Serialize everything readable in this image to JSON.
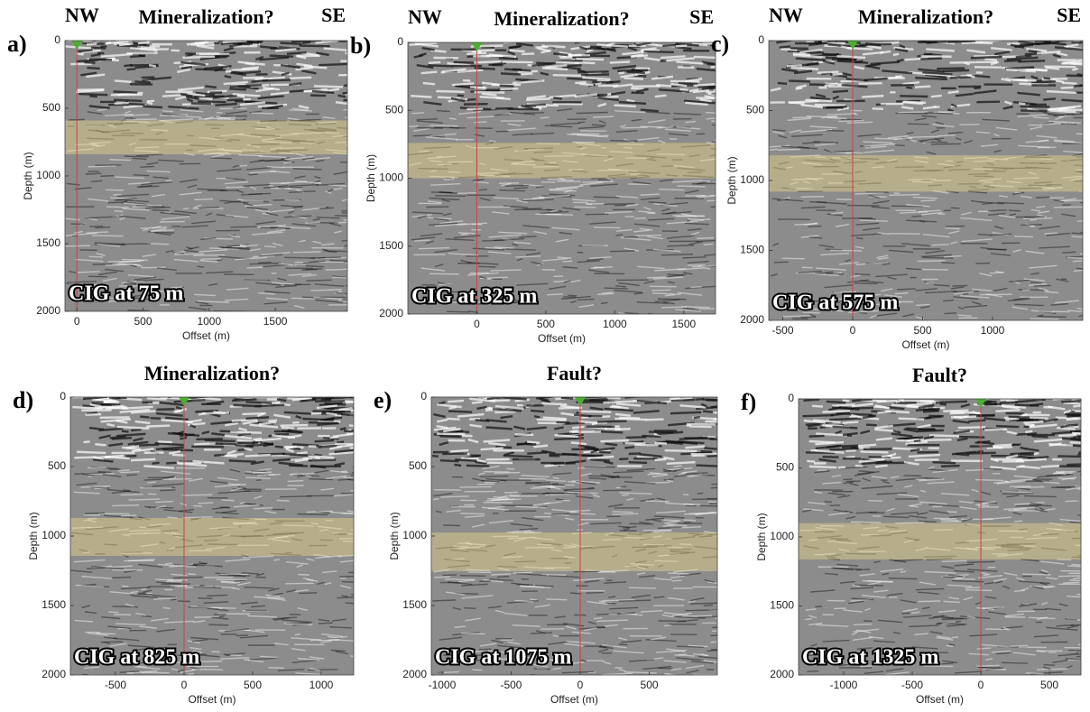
{
  "panels": [
    {
      "label": "a)",
      "left_label": "NW",
      "title": "Mineralization?",
      "right_label": "SE",
      "cig": "CIG at 75 m",
      "xlabel": "Offset (m)",
      "ylabel": "Depth (m)",
      "xlim": [
        -90,
        2045
      ],
      "ylim": [
        0,
        2000
      ],
      "xticks": [
        0,
        500,
        1000,
        1500
      ],
      "yticks": [
        0,
        500,
        1000,
        1500,
        2000
      ],
      "band": [
        590,
        840
      ],
      "marker": 0
    },
    {
      "label": "b)",
      "left_label": "NW",
      "title": "Mineralization?",
      "right_label": "SE",
      "cig": "CIG at 325 m",
      "xlabel": "Offset (m)",
      "ylabel": "Depth (m)",
      "xlim": [
        -500,
        1730
      ],
      "ylim": [
        0,
        2000
      ],
      "xticks": [
        0,
        500,
        1000,
        1500
      ],
      "yticks": [
        0,
        500,
        1000,
        1500,
        2000
      ],
      "band": [
        740,
        1000
      ],
      "marker": 0
    },
    {
      "label": "c)",
      "left_label": "NW",
      "title": "Mineralization?",
      "right_label": "SE",
      "cig": "CIG at 575 m",
      "xlabel": "Offset (m)",
      "ylabel": "Depth (m)",
      "xlim": [
        -600,
        1645
      ],
      "ylim": [
        0,
        2000
      ],
      "xticks": [
        -500,
        0,
        500,
        1000
      ],
      "yticks": [
        0,
        500,
        1000,
        1500,
        2000
      ],
      "band": [
        820,
        1080
      ],
      "marker": 0
    },
    {
      "label": "d)",
      "title": "Mineralization?",
      "cig": "CIG at 825 m",
      "xlabel": "Offset (m)",
      "ylabel": "Depth (m)",
      "xlim": [
        -829,
        1237
      ],
      "ylim": [
        0,
        2000
      ],
      "xticks": [
        -500,
        0,
        500,
        1000
      ],
      "yticks": [
        0,
        500,
        1000,
        1500,
        2000
      ],
      "band": [
        870,
        1143
      ],
      "marker": 0
    },
    {
      "label": "e)",
      "title": "Fault?",
      "cig": "CIG at 1075 m",
      "xlabel": "Offset (m)",
      "ylabel": "Depth (m)",
      "xlim": [
        -1078,
        993
      ],
      "ylim": [
        0,
        2000
      ],
      "xticks": [
        -1000,
        -500,
        0,
        500
      ],
      "yticks": [
        0,
        500,
        1000,
        1500,
        2000
      ],
      "band": [
        975,
        1253
      ],
      "marker": 0
    },
    {
      "label": "f)",
      "title": "Fault?",
      "cig": "CIG at 1325 m",
      "xlabel": "Offset (m)",
      "ylabel": "Depth (m)",
      "xlim": [
        -1329,
        730
      ],
      "ylim": [
        0,
        2000
      ],
      "xticks": [
        -1000,
        -500,
        0,
        500
      ],
      "yticks": [
        0,
        500,
        1000,
        1500,
        2000
      ],
      "band": [
        900,
        1163
      ],
      "marker": 0
    }
  ]
}
